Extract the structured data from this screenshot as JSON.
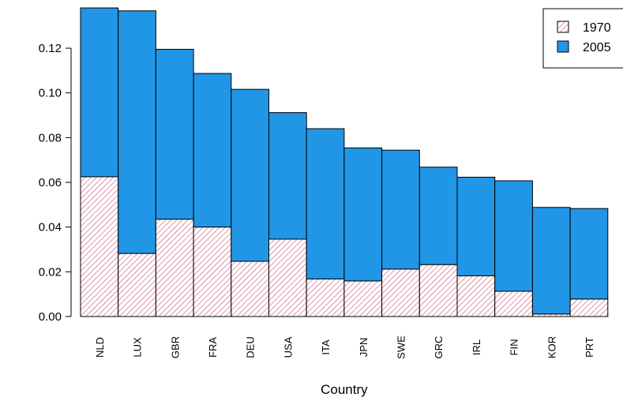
{
  "chart_data": {
    "type": "bar",
    "stacked": true,
    "xlabel": "Country",
    "ylabel": "",
    "ylim": [
      0,
      0.138
    ],
    "yticks": [
      0.0,
      0.02,
      0.04,
      0.06,
      0.08,
      0.1,
      0.12
    ],
    "ytick_labels": [
      "0.00",
      "0.02",
      "0.04",
      "0.06",
      "0.08",
      "0.10",
      "0.12"
    ],
    "categories": [
      "NLD",
      "LUX",
      "GBR",
      "FRA",
      "DEU",
      "USA",
      "ITA",
      "JPN",
      "SWE",
      "GRC",
      "IRL",
      "FIN",
      "KOR",
      "PRT"
    ],
    "series": [
      {
        "name": "1970",
        "fill": "hatched",
        "color": "#c8506e",
        "values": [
          0.0625,
          0.0282,
          0.0435,
          0.04,
          0.0247,
          0.0346,
          0.0168,
          0.0159,
          0.0212,
          0.0232,
          0.0182,
          0.0113,
          0.0011,
          0.0078
        ]
      },
      {
        "name": "2005",
        "fill": "solid",
        "color": "#2196e6",
        "values": [
          0.0755,
          0.1085,
          0.076,
          0.0687,
          0.0769,
          0.0566,
          0.0672,
          0.0595,
          0.0532,
          0.0436,
          0.0441,
          0.0494,
          0.0477,
          0.0405
        ]
      }
    ],
    "legend_position": "top-right",
    "grid": false
  }
}
